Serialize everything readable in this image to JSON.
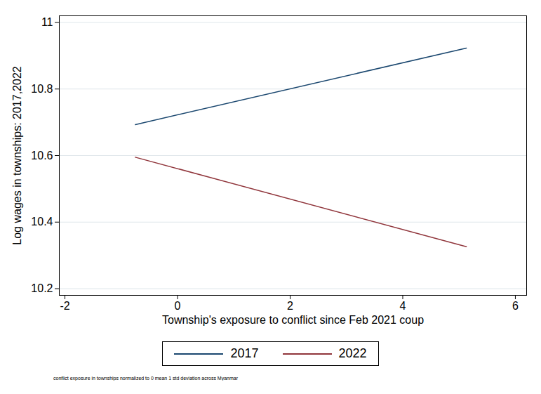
{
  "chart_data": {
    "type": "line",
    "caption": "conflict exposure in townships normalized to 0 mean 1 std deviation across Myanmar",
    "x_label": "Township's exposure to conflict since Feb 2021 coup",
    "y_label": "Log wages in townships: 2017,2022",
    "x": [
      -0.75,
      5.13
    ],
    "series": [
      {
        "name": "2017",
        "color": "#1a476f",
        "values": [
          10.693,
          10.923
        ]
      },
      {
        "name": "2022",
        "color": "#90353b",
        "values": [
          10.595,
          10.326
        ]
      }
    ],
    "xlim": [
      -2.1,
      6.2
    ],
    "xticks": [
      -2,
      0,
      2,
      4,
      6
    ],
    "ylim": [
      10.18,
      11.02
    ],
    "yticks": [
      10.2,
      10.4,
      10.6,
      10.8,
      11
    ],
    "grid": true,
    "legend": "bottom"
  }
}
